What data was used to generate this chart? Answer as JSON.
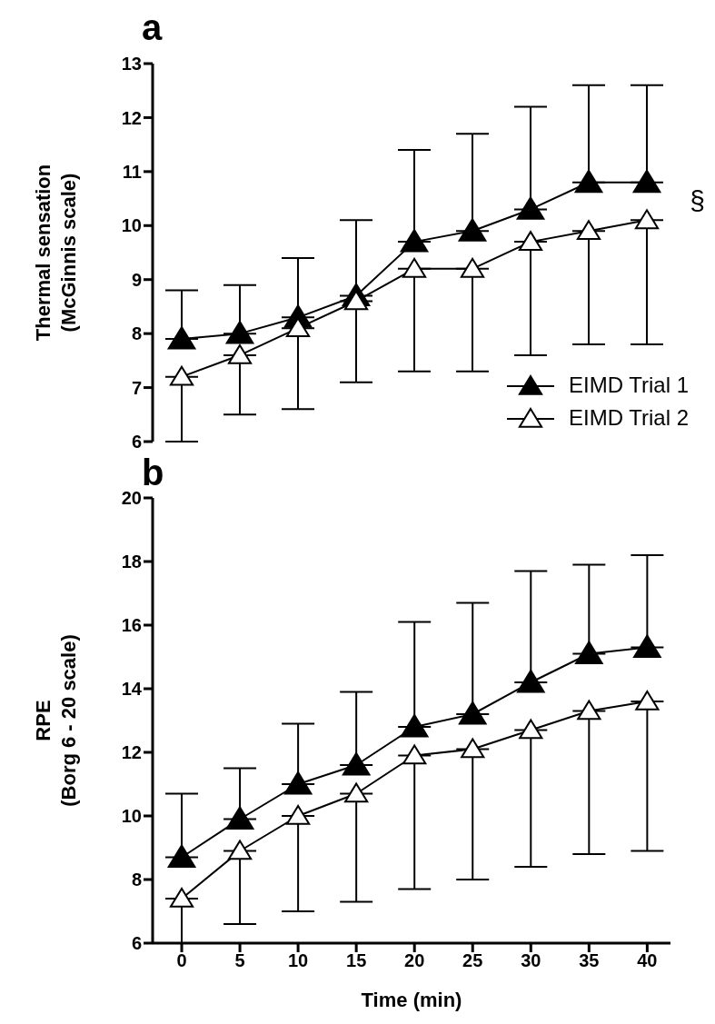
{
  "chart_data": [
    {
      "type": "line",
      "title": "a",
      "ylabel": "Thermal sensation\n(McGinnis scale)",
      "x": [
        0,
        5,
        10,
        15,
        20,
        25,
        30,
        35,
        40
      ],
      "ylim": [
        6,
        13
      ],
      "yticks": [
        6,
        7,
        8,
        9,
        10,
        11,
        12,
        13
      ],
      "tick_labels": "y",
      "grid": false,
      "legend": "bottom right",
      "marker": "triangle",
      "line_style": "solid",
      "annotations": [
        "§"
      ],
      "series": [
        {
          "name": "EIMD Trial 1",
          "color": "#000000",
          "values": [
            7.9,
            8.0,
            8.3,
            8.7,
            9.7,
            9.9,
            10.3,
            10.8,
            10.8
          ],
          "errors": [
            [
              7.9,
              8.8
            ],
            [
              8.0,
              8.9
            ],
            [
              8.3,
              9.4
            ],
            [
              8.7,
              10.1
            ],
            [
              9.7,
              11.4
            ],
            [
              9.9,
              11.7
            ],
            [
              10.3,
              12.2
            ],
            [
              10.8,
              12.6
            ],
            [
              10.8,
              12.6
            ]
          ]
        },
        {
          "name": "EIMD Trial 2",
          "color": "#ffffff",
          "values": [
            7.2,
            7.6,
            8.1,
            8.6,
            9.2,
            9.2,
            9.7,
            9.9,
            10.1
          ],
          "errors": [
            [
              6.0,
              7.2
            ],
            [
              6.5,
              7.6
            ],
            [
              6.6,
              8.1
            ],
            [
              7.1,
              8.6
            ],
            [
              7.3,
              9.2
            ],
            [
              7.3,
              9.2
            ],
            [
              7.6,
              9.7
            ],
            [
              7.8,
              9.9
            ],
            [
              7.8,
              10.1
            ]
          ]
        }
      ]
    },
    {
      "type": "line",
      "title": "b",
      "xlabel": "Time (min)",
      "ylabel": "RPE\n(Borg 6 - 20 scale)",
      "x": [
        0,
        5,
        10,
        15,
        20,
        25,
        30,
        35,
        40
      ],
      "xlim": [
        -2.5,
        42
      ],
      "xticks": [
        0,
        5,
        10,
        15,
        20,
        25,
        30,
        35,
        40
      ],
      "ylim": [
        6,
        20
      ],
      "yticks": [
        6,
        8,
        10,
        12,
        14,
        16,
        18,
        20
      ],
      "grid": false,
      "marker": "triangle",
      "line_style": "solid",
      "series": [
        {
          "color": "#000000",
          "values": [
            8.7,
            9.9,
            11.0,
            11.6,
            12.8,
            13.2,
            14.2,
            15.1,
            15.3
          ],
          "errors": [
            [
              8.7,
              10.7
            ],
            [
              9.9,
              11.5
            ],
            [
              11.0,
              12.9
            ],
            [
              11.6,
              13.9
            ],
            [
              12.8,
              16.1
            ],
            [
              13.2,
              16.7
            ],
            [
              14.2,
              17.7
            ],
            [
              15.1,
              17.9
            ],
            [
              15.3,
              18.2
            ]
          ]
        },
        {
          "color": "#ffffff",
          "values": [
            7.4,
            8.9,
            10.0,
            10.7,
            11.9,
            12.1,
            12.7,
            13.3,
            13.6
          ],
          "errors": [
            [
              6.0,
              7.4
            ],
            [
              6.6,
              8.9
            ],
            [
              7.0,
              10.0
            ],
            [
              7.3,
              10.7
            ],
            [
              7.7,
              11.9
            ],
            [
              8.0,
              12.1
            ],
            [
              8.4,
              12.7
            ],
            [
              8.8,
              13.3
            ],
            [
              8.9,
              13.6
            ]
          ]
        }
      ]
    }
  ]
}
